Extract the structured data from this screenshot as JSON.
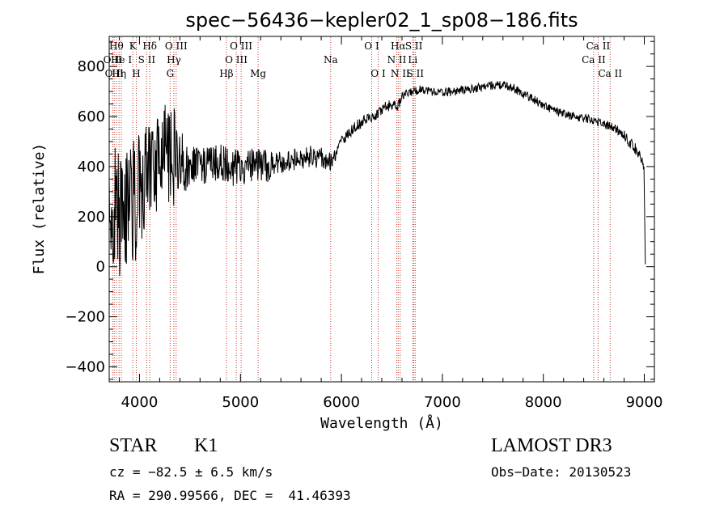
{
  "chart_data": {
    "type": "line",
    "title": "spec−56436−kepler02_1_sp08−186.fits",
    "xlabel": "Wavelength (Å)",
    "ylabel": "Flux (relative)",
    "xlim": [
      3700,
      9100
    ],
    "ylim": [
      -460,
      920
    ],
    "grid": false,
    "x_ticks": [
      {
        "value": 4000,
        "label": "4000"
      },
      {
        "value": 5000,
        "label": "5000"
      },
      {
        "value": 6000,
        "label": "6000"
      },
      {
        "value": 7000,
        "label": "7000"
      },
      {
        "value": 8000,
        "label": "8000"
      },
      {
        "value": 9000,
        "label": "9000"
      }
    ],
    "y_ticks": [
      {
        "value": -400,
        "label": "−400"
      },
      {
        "value": -200,
        "label": "−200"
      },
      {
        "value": 0,
        "label": "0"
      },
      {
        "value": 200,
        "label": "200"
      },
      {
        "value": 400,
        "label": "400"
      },
      {
        "value": 600,
        "label": "600"
      },
      {
        "value": 800,
        "label": "800"
      }
    ],
    "x_minor_step": 200,
    "y_minor_step": 50,
    "series": [
      {
        "name": "flux",
        "anchors": [
          [
            3700,
            250
          ],
          [
            3740,
            240
          ],
          [
            3780,
            220
          ],
          [
            3820,
            210
          ],
          [
            3860,
            230
          ],
          [
            3900,
            240
          ],
          [
            3950,
            260
          ],
          [
            4000,
            300
          ],
          [
            4050,
            340
          ],
          [
            4100,
            380
          ],
          [
            4150,
            400
          ],
          [
            4200,
            420
          ],
          [
            4250,
            440
          ],
          [
            4300,
            420
          ],
          [
            4350,
            430
          ],
          [
            4400,
            430
          ],
          [
            4450,
            420
          ],
          [
            4500,
            415
          ],
          [
            4550,
            410
          ],
          [
            4600,
            405
          ],
          [
            4650,
            400
          ],
          [
            4700,
            405
          ],
          [
            4750,
            410
          ],
          [
            4800,
            415
          ],
          [
            4850,
            405
          ],
          [
            4900,
            400
          ],
          [
            4950,
            395
          ],
          [
            5000,
            395
          ],
          [
            5050,
            400
          ],
          [
            5100,
            400
          ],
          [
            5150,
            390
          ],
          [
            5200,
            400
          ],
          [
            5250,
            405
          ],
          [
            5300,
            410
          ],
          [
            5400,
            415
          ],
          [
            5500,
            425
          ],
          [
            5600,
            435
          ],
          [
            5700,
            440
          ],
          [
            5800,
            440
          ],
          [
            5850,
            430
          ],
          [
            5900,
            420
          ],
          [
            5950,
            450
          ],
          [
            6000,
            500
          ],
          [
            6100,
            545
          ],
          [
            6200,
            575
          ],
          [
            6300,
            600
          ],
          [
            6400,
            625
          ],
          [
            6500,
            650
          ],
          [
            6560,
            640
          ],
          [
            6600,
            680
          ],
          [
            6700,
            700
          ],
          [
            6800,
            710
          ],
          [
            6900,
            700
          ],
          [
            7000,
            695
          ],
          [
            7100,
            700
          ],
          [
            7200,
            705
          ],
          [
            7300,
            710
          ],
          [
            7400,
            720
          ],
          [
            7500,
            725
          ],
          [
            7600,
            725
          ],
          [
            7700,
            715
          ],
          [
            7800,
            690
          ],
          [
            7900,
            670
          ],
          [
            8000,
            645
          ],
          [
            8100,
            625
          ],
          [
            8200,
            610
          ],
          [
            8300,
            600
          ],
          [
            8400,
            595
          ],
          [
            8500,
            585
          ],
          [
            8600,
            570
          ],
          [
            8700,
            555
          ],
          [
            8800,
            525
          ],
          [
            8850,
            500
          ],
          [
            8900,
            475
          ],
          [
            8950,
            455
          ],
          [
            8980,
            420
          ],
          [
            9000,
            380
          ],
          [
            9010,
            10
          ]
        ]
      }
    ],
    "lines": [
      {
        "wl": 3734,
        "label": "O II",
        "row": 1
      },
      {
        "wl": 3750,
        "label": "O II",
        "row": 2
      },
      {
        "wl": 3771,
        "label": "Hθ",
        "row": 0
      },
      {
        "wl": 3798,
        "label": "Hη",
        "row": 2
      },
      {
        "wl": 3820,
        "label": "He I",
        "row": 1
      },
      {
        "wl": 3934,
        "label": "K",
        "row": 0
      },
      {
        "wl": 3968,
        "label": "H",
        "row": 2
      },
      {
        "wl": 4072,
        "label": "S II",
        "row": 1
      },
      {
        "wl": 4102,
        "label": "Hδ",
        "row": 0
      },
      {
        "wl": 4304,
        "label": "G",
        "row": 2
      },
      {
        "wl": 4341,
        "label": "Hγ",
        "row": 1
      },
      {
        "wl": 4363,
        "label": "O III",
        "row": 0
      },
      {
        "wl": 4861,
        "label": "Hβ",
        "row": 2
      },
      {
        "wl": 4959,
        "label": "O III",
        "row": 1
      },
      {
        "wl": 5007,
        "label": "O III",
        "row": 0
      },
      {
        "wl": 5175,
        "label": "Mg",
        "row": 2
      },
      {
        "wl": 5894,
        "label": "Na",
        "row": 1
      },
      {
        "wl": 6300,
        "label": "O I",
        "row": 0
      },
      {
        "wl": 6364,
        "label": "O I",
        "row": 2
      },
      {
        "wl": 6548,
        "label": "N II",
        "row": 1
      },
      {
        "wl": 6563,
        "label": "Hα",
        "row": 0
      },
      {
        "wl": 6583,
        "label": "N II",
        "row": 2
      },
      {
        "wl": 6707,
        "label": "Li",
        "row": 1
      },
      {
        "wl": 6717,
        "label": "S II",
        "row": 0
      },
      {
        "wl": 6731,
        "label": "S II",
        "row": 2
      },
      {
        "wl": 8498,
        "label": "Ca II",
        "row": 1
      },
      {
        "wl": 8542,
        "label": "Ca II",
        "row": 0
      },
      {
        "wl": 8662,
        "label": "Ca II",
        "row": 2
      }
    ]
  },
  "info": {
    "object_type": "STAR",
    "subclass": "K1",
    "survey": "LAMOST DR3",
    "redshift": "cz = −82.5 ± 6.5 km/s",
    "obs_date": "Obs−Date: 20130523",
    "coords": "RA = 290.99566, DEC =  41.46393"
  }
}
